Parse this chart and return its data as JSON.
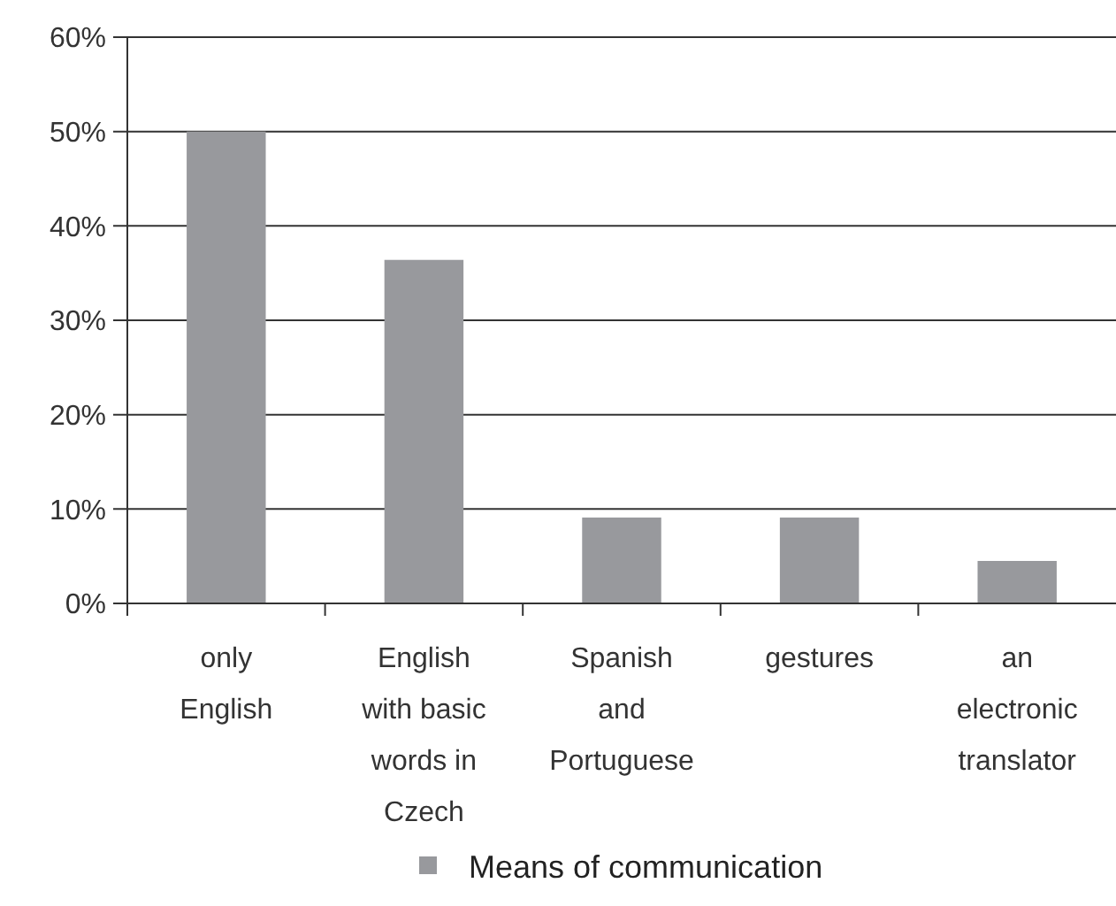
{
  "chart_data": {
    "type": "bar",
    "categories": [
      "only English",
      "English with basic words in Czech",
      "Spanish and Portuguese",
      "gestures",
      "an electronic translator"
    ],
    "series": [
      {
        "name": "Means of communication",
        "color": "#98999d",
        "values": [
          50,
          36.4,
          9.1,
          9.1,
          4.5
        ]
      }
    ],
    "ylim": [
      0,
      60
    ],
    "yticks": [
      {
        "value": 0,
        "label": "0%"
      },
      {
        "value": 10,
        "label": "10%"
      },
      {
        "value": 20,
        "label": "20%"
      },
      {
        "value": 30,
        "label": "30%"
      },
      {
        "value": 40,
        "label": "40%"
      },
      {
        "value": 50,
        "label": "50%"
      },
      {
        "value": 60,
        "label": "60%"
      }
    ],
    "grid": "y",
    "legend": "bottom"
  }
}
